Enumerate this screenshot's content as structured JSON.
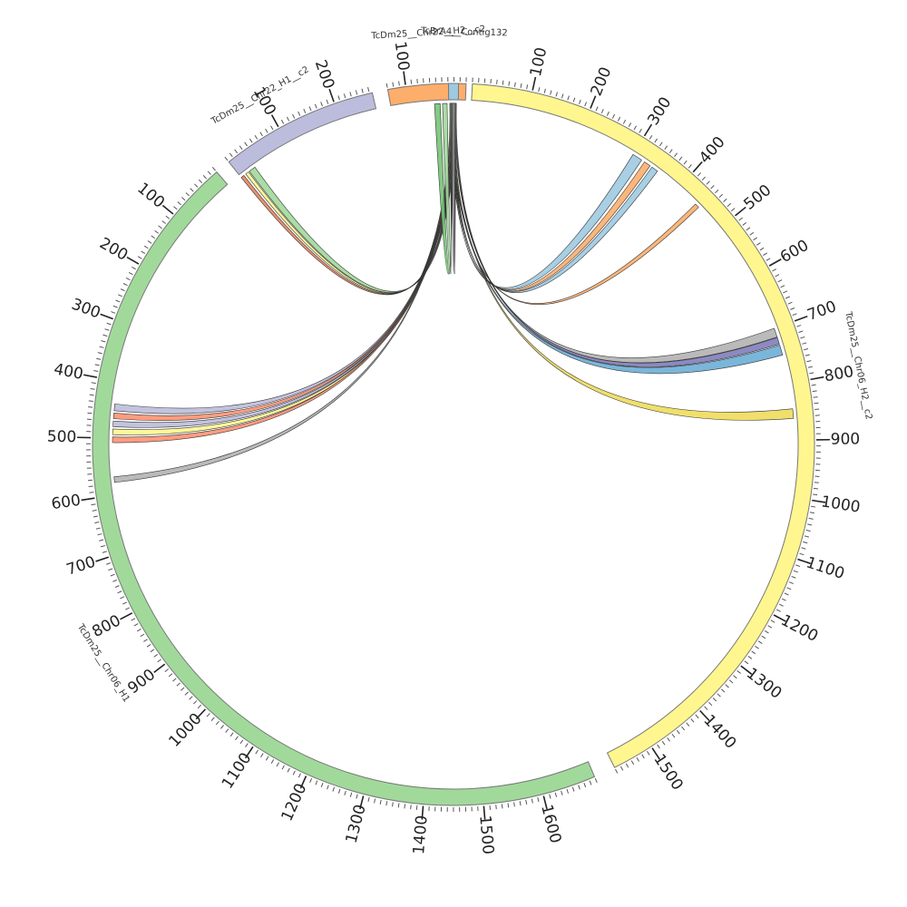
{
  "segments": [
    {
      "id": "s1",
      "label": "TcDm25__Chr06_H2__c2",
      "length": 1570,
      "color": "#FFF68F"
    },
    {
      "id": "s2",
      "label": "TcDm25__Chr06_H1",
      "length": 1690,
      "color": "#A1D99B"
    },
    {
      "id": "s3",
      "label": "TcDm25__Chr22_H1__c2",
      "length": 265,
      "color": "#BCBDDC"
    },
    {
      "id": "s4",
      "label": "TcDm25__Chr22__H2__c2",
      "length": 130,
      "color": "#FDAE6B"
    },
    {
      "id": "s5",
      "label": "TcBrA4__Contig132",
      "length": 14,
      "color": "#9ECAE1"
    }
  ],
  "tick_labels": {
    "s1": [
      "100",
      "200",
      "300",
      "400",
      "500",
      "600",
      "700",
      "800",
      "900",
      "1000",
      "1100",
      "1200",
      "1300",
      "1400",
      "1500"
    ],
    "s2": [
      "100",
      "200",
      "300",
      "400",
      "500",
      "600",
      "700",
      "800",
      "900",
      "1000",
      "1100",
      "1200",
      "1300",
      "1400",
      "1500",
      "1600"
    ],
    "s3": [
      "100",
      "200"
    ],
    "s4": [
      "100"
    ]
  },
  "links": [
    {
      "source": "s5",
      "target": "s1",
      "target_start": 300,
      "target_end": 318,
      "color": "#9ECAE1"
    },
    {
      "source": "s5",
      "target": "s1",
      "target_start": 324,
      "target_end": 336,
      "color": "#FDAE6B"
    },
    {
      "source": "s5",
      "target": "s1",
      "target_start": 340,
      "target_end": 352,
      "color": "#9ECAE1"
    },
    {
      "source": "s5",
      "target": "s1",
      "target_start": 440,
      "target_end": 448,
      "color": "#FDAE6B"
    },
    {
      "source": "s5",
      "target": "s1",
      "target_start": 700,
      "target_end": 716,
      "color": "#B3B3B3"
    },
    {
      "source": "s5",
      "target": "s1",
      "target_start": 717,
      "target_end": 729,
      "color": "#807DBA"
    },
    {
      "source": "s5",
      "target": "s1",
      "target_start": 731,
      "target_end": 749,
      "color": "#6BAED6"
    },
    {
      "source": "s5",
      "target": "s1",
      "target_start": 845,
      "target_end": 862,
      "color": "#EEDC5B"
    },
    {
      "source": "s5",
      "target": "s2",
      "target_start": 440,
      "target_end": 452,
      "color": "#BCBDDC"
    },
    {
      "source": "s5",
      "target": "s2",
      "target_start": 456,
      "target_end": 466,
      "color": "#FC9272"
    },
    {
      "source": "s5",
      "target": "s2",
      "target_start": 470,
      "target_end": 480,
      "color": "#BCBDDC"
    },
    {
      "source": "s5",
      "target": "s2",
      "target_start": 484,
      "target_end": 494,
      "color": "#FFF68F"
    },
    {
      "source": "s5",
      "target": "s2",
      "target_start": 498,
      "target_end": 508,
      "color": "#FC9272"
    },
    {
      "source": "s5",
      "target": "s2",
      "target_start": 568,
      "target_end": 578,
      "color": "#B3B3B3"
    },
    {
      "source": "s5",
      "target": "s3",
      "target_start": 0,
      "target_end": 6,
      "color": "#E6855E"
    },
    {
      "source": "s5",
      "target": "s3",
      "target_start": 10,
      "target_end": 16,
      "color": "#FFF68F"
    },
    {
      "source": "s5",
      "target": "s3",
      "target_start": 18,
      "target_end": 30,
      "color": "#A1D99B"
    },
    {
      "source": "s5",
      "target": "s4",
      "target_start": 16,
      "target_end": 24,
      "color": "#888888"
    },
    {
      "source": "s5",
      "target": "s4",
      "target_start": 32,
      "target_end": 40,
      "color": "#A1D99B"
    },
    {
      "source": "s5",
      "target": "s4",
      "target_start": 44,
      "target_end": 54,
      "color": "#74C476"
    }
  ]
}
